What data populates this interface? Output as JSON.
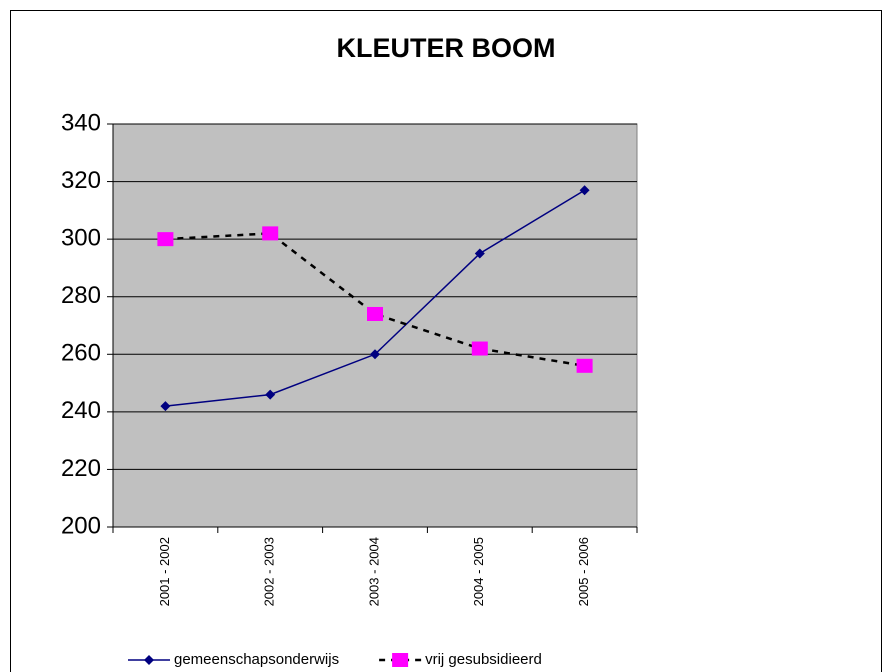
{
  "chart_data": {
    "type": "line",
    "title": "KLEUTER BOOM",
    "categories": [
      "2001 - 2002",
      "2002 - 2003",
      "2003 - 2004",
      "2004 - 2005",
      "2005 - 2006"
    ],
    "series": [
      {
        "name": "gemeenschapsonderwijs",
        "color": "#000080",
        "line_color": "#000080",
        "dash": false,
        "marker": "diamond",
        "values": [
          242,
          246,
          260,
          295,
          317
        ]
      },
      {
        "name": "vrij gesubsidieerd",
        "color": "#ff00ff",
        "line_color": "#000000",
        "dash": true,
        "marker": "square",
        "values": [
          300,
          302,
          274,
          262,
          256
        ]
      }
    ],
    "ylim": [
      200,
      340
    ],
    "yticks": [
      200,
      220,
      240,
      260,
      280,
      300,
      320,
      340
    ],
    "grid": true,
    "legend": "bottom",
    "plot_background": "#c0c0c0"
  }
}
